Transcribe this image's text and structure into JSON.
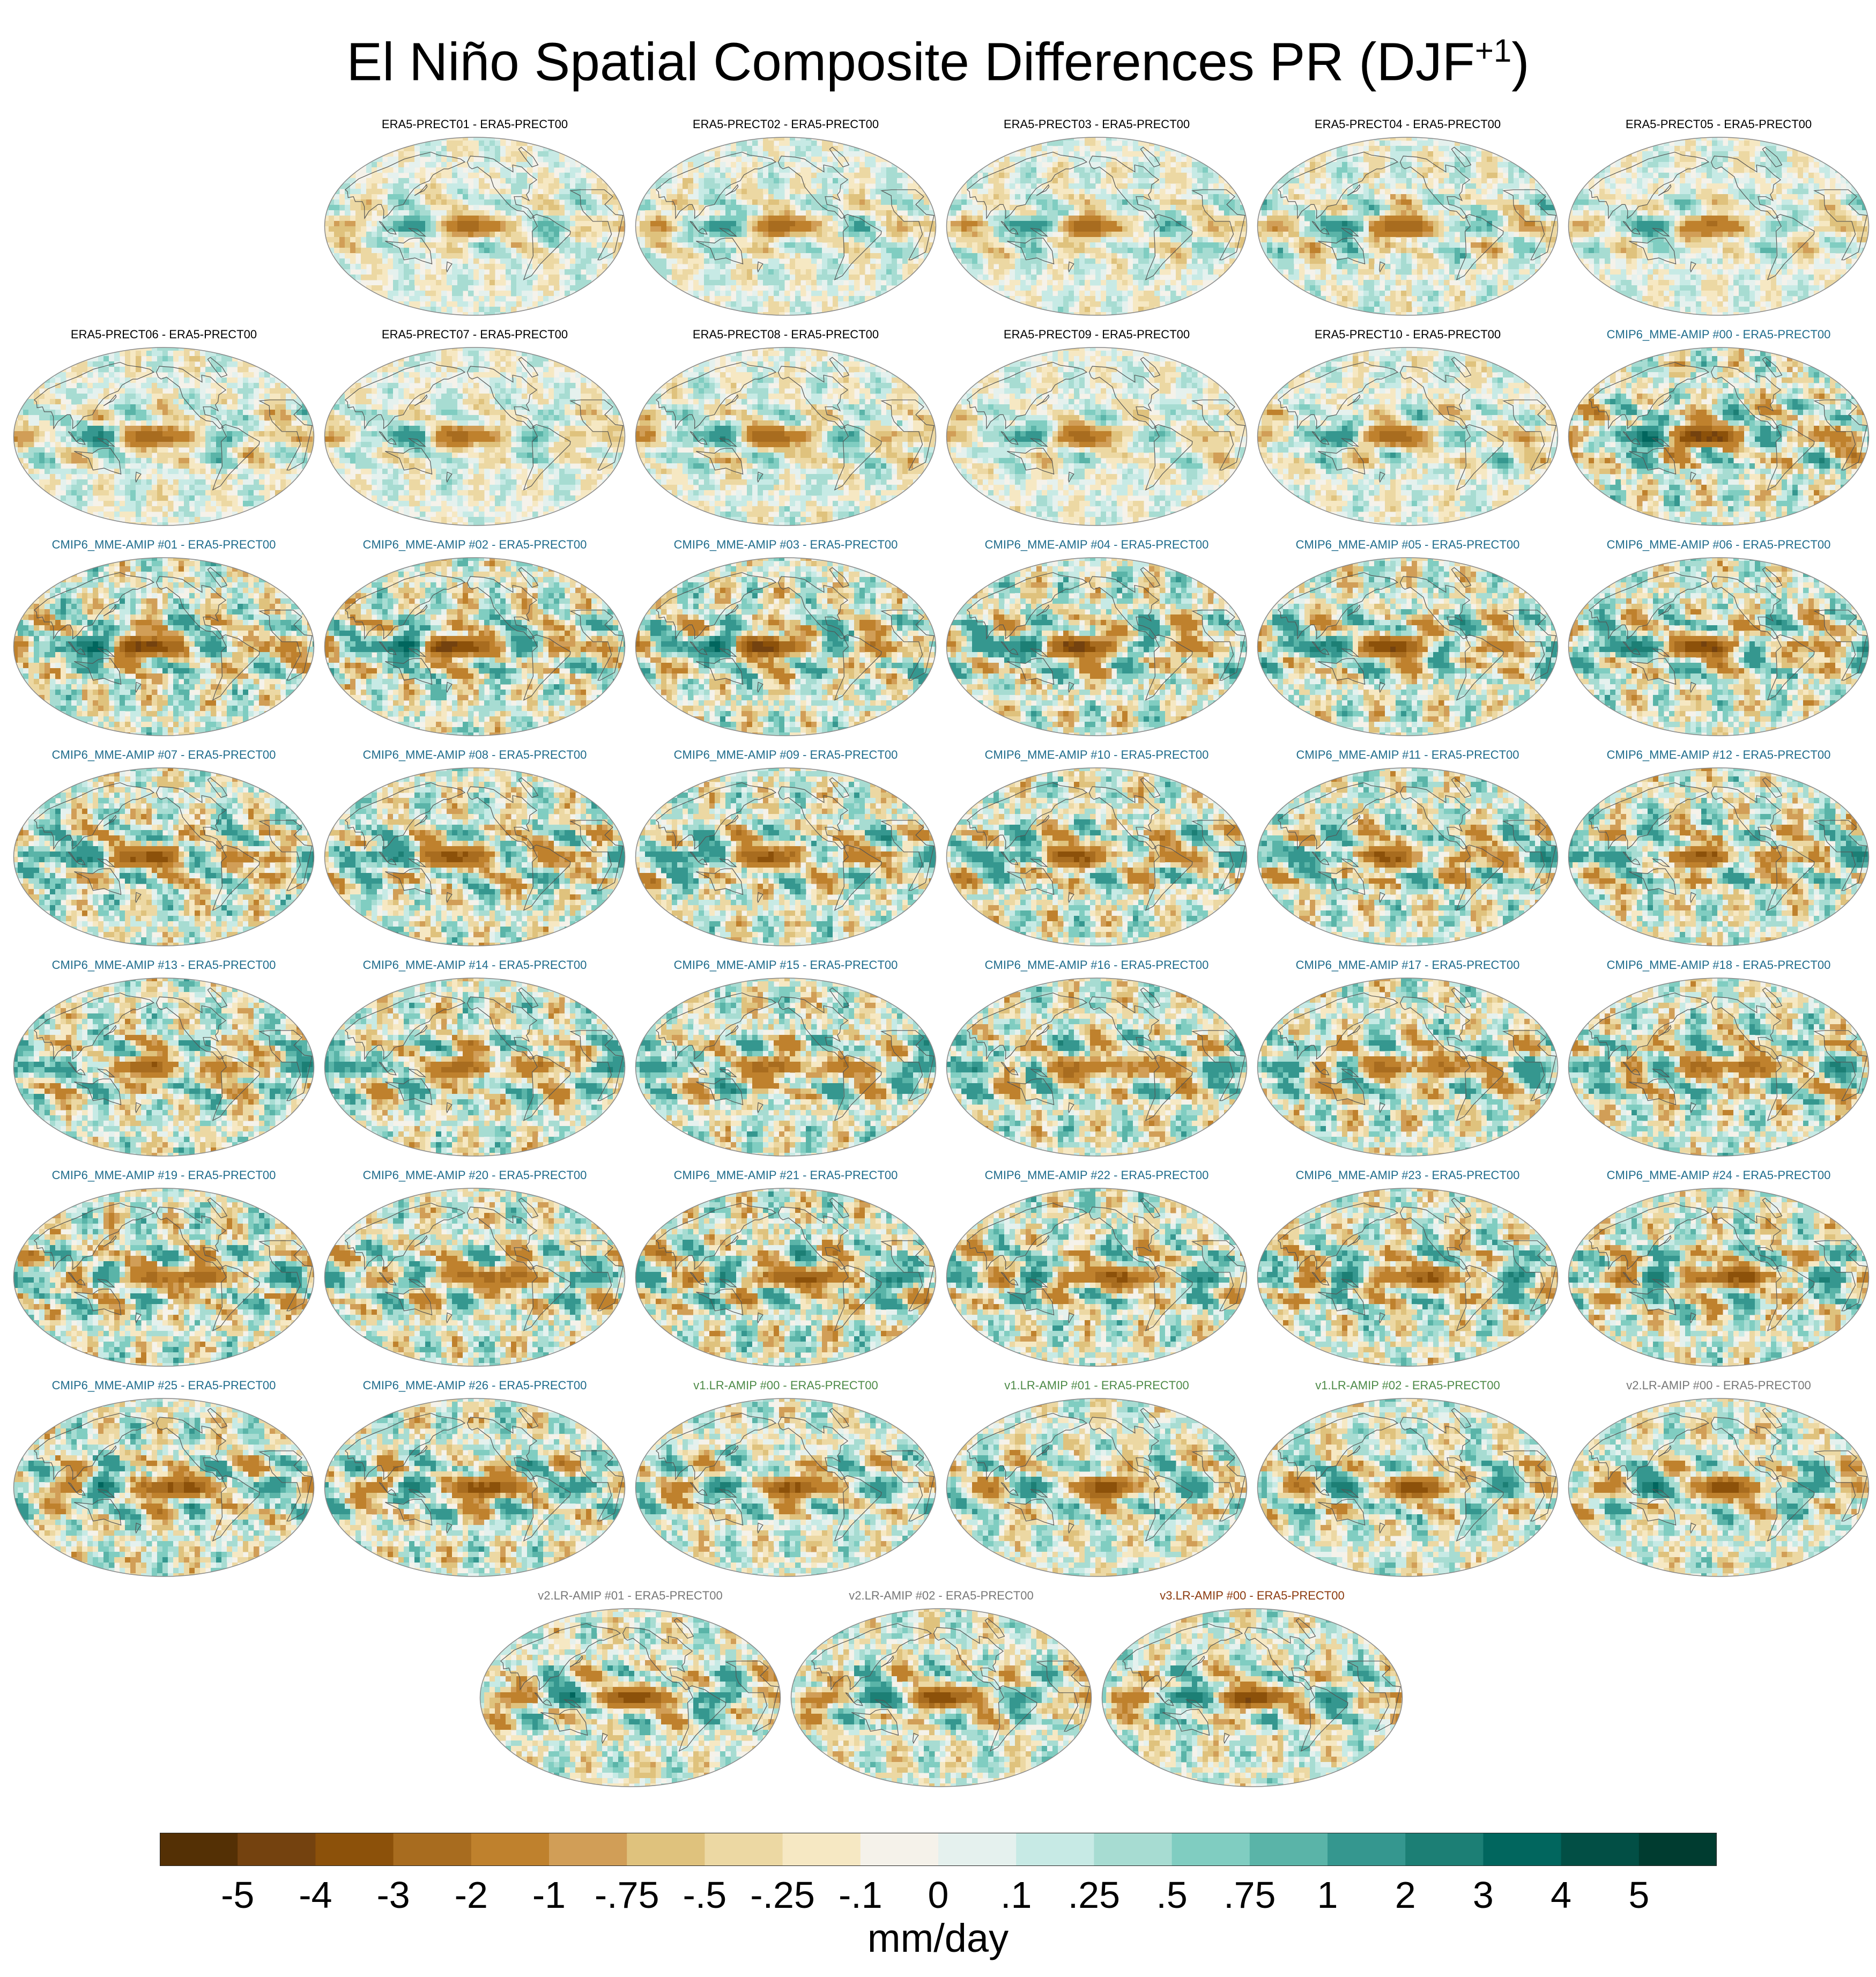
{
  "title": {
    "main": "El Niño Spatial Composite Differences PR (DJF",
    "sup": "+1",
    "close": ")"
  },
  "label_colors": {
    "ERA5": "#000000",
    "CMIP6": "#1f6c8c",
    "v1": "#4d8a47",
    "v2": "#777777",
    "v3": "#8b3a0e"
  },
  "panels": [
    {
      "label": "ERA5-PRECT01 - ERA5-PRECT00",
      "group": "ERA5",
      "amp": 0.45
    },
    {
      "label": "ERA5-PRECT02 - ERA5-PRECT00",
      "group": "ERA5",
      "amp": 0.5
    },
    {
      "label": "ERA5-PRECT03 - ERA5-PRECT00",
      "group": "ERA5",
      "amp": 0.5
    },
    {
      "label": "ERA5-PRECT04 - ERA5-PRECT00",
      "group": "ERA5",
      "amp": 0.6
    },
    {
      "label": "ERA5-PRECT05 - ERA5-PRECT00",
      "group": "ERA5",
      "amp": 0.45
    },
    {
      "label": "ERA5-PRECT06 - ERA5-PRECT00",
      "group": "ERA5",
      "amp": 0.55
    },
    {
      "label": "ERA5-PRECT07 - ERA5-PRECT00",
      "group": "ERA5",
      "amp": 0.45
    },
    {
      "label": "ERA5-PRECT08 - ERA5-PRECT00",
      "group": "ERA5",
      "amp": 0.55
    },
    {
      "label": "ERA5-PRECT09 - ERA5-PRECT00",
      "group": "ERA5",
      "amp": 0.45
    },
    {
      "label": "ERA5-PRECT10 - ERA5-PRECT00",
      "group": "ERA5",
      "amp": 0.55
    },
    {
      "label": "CMIP6_MME-AMIP  #00 - ERA5-PRECT00",
      "group": "CMIP6",
      "amp": 1.0
    },
    {
      "label": "CMIP6_MME-AMIP  #01 - ERA5-PRECT00",
      "group": "CMIP6",
      "amp": 1.0
    },
    {
      "label": "CMIP6_MME-AMIP  #02 - ERA5-PRECT00",
      "group": "CMIP6",
      "amp": 1.0
    },
    {
      "label": "CMIP6_MME-AMIP  #03 - ERA5-PRECT00",
      "group": "CMIP6",
      "amp": 1.0
    },
    {
      "label": "CMIP6_MME-AMIP  #04 - ERA5-PRECT00",
      "group": "CMIP6",
      "amp": 1.0
    },
    {
      "label": "CMIP6_MME-AMIP  #05 - ERA5-PRECT00",
      "group": "CMIP6",
      "amp": 1.0
    },
    {
      "label": "CMIP6_MME-AMIP  #06 - ERA5-PRECT00",
      "group": "CMIP6",
      "amp": 1.0
    },
    {
      "label": "CMIP6_MME-AMIP  #07 - ERA5-PRECT00",
      "group": "CMIP6",
      "amp": 1.0
    },
    {
      "label": "CMIP6_MME-AMIP  #08 - ERA5-PRECT00",
      "group": "CMIP6",
      "amp": 1.0
    },
    {
      "label": "CMIP6_MME-AMIP  #09 - ERA5-PRECT00",
      "group": "CMIP6",
      "amp": 1.0
    },
    {
      "label": "CMIP6_MME-AMIP  #10 - ERA5-PRECT00",
      "group": "CMIP6",
      "amp": 1.0
    },
    {
      "label": "CMIP6_MME-AMIP  #11 - ERA5-PRECT00",
      "group": "CMIP6",
      "amp": 1.0
    },
    {
      "label": "CMIP6_MME-AMIP  #12 - ERA5-PRECT00",
      "group": "CMIP6",
      "amp": 1.0
    },
    {
      "label": "CMIP6_MME-AMIP  #13 - ERA5-PRECT00",
      "group": "CMIP6",
      "amp": 1.0
    },
    {
      "label": "CMIP6_MME-AMIP  #14 - ERA5-PRECT00",
      "group": "CMIP6",
      "amp": 1.0
    },
    {
      "label": "CMIP6_MME-AMIP  #15 - ERA5-PRECT00",
      "group": "CMIP6",
      "amp": 1.0
    },
    {
      "label": "CMIP6_MME-AMIP  #16 - ERA5-PRECT00",
      "group": "CMIP6",
      "amp": 1.0
    },
    {
      "label": "CMIP6_MME-AMIP  #17 - ERA5-PRECT00",
      "group": "CMIP6",
      "amp": 1.0
    },
    {
      "label": "CMIP6_MME-AMIP  #18 - ERA5-PRECT00",
      "group": "CMIP6",
      "amp": 1.0
    },
    {
      "label": "CMIP6_MME-AMIP  #19 - ERA5-PRECT00",
      "group": "CMIP6",
      "amp": 1.1
    },
    {
      "label": "CMIP6_MME-AMIP  #20 - ERA5-PRECT00",
      "group": "CMIP6",
      "amp": 1.0
    },
    {
      "label": "CMIP6_MME-AMIP  #21 - ERA5-PRECT00",
      "group": "CMIP6",
      "amp": 1.1
    },
    {
      "label": "CMIP6_MME-AMIP  #22 - ERA5-PRECT00",
      "group": "CMIP6",
      "amp": 1.0
    },
    {
      "label": "CMIP6_MME-AMIP  #23 - ERA5-PRECT00",
      "group": "CMIP6",
      "amp": 1.0
    },
    {
      "label": "CMIP6_MME-AMIP  #24 - ERA5-PRECT00",
      "group": "CMIP6",
      "amp": 1.0
    },
    {
      "label": "CMIP6_MME-AMIP  #25 - ERA5-PRECT00",
      "group": "CMIP6",
      "amp": 1.0
    },
    {
      "label": "CMIP6_MME-AMIP  #26 - ERA5-PRECT00",
      "group": "CMIP6",
      "amp": 1.0
    },
    {
      "label": "v1.LR-AMIP  #00 - ERA5-PRECT00",
      "group": "v1",
      "amp": 0.85
    },
    {
      "label": "v1.LR-AMIP  #01 - ERA5-PRECT00",
      "group": "v1",
      "amp": 0.85
    },
    {
      "label": "v1.LR-AMIP  #02 - ERA5-PRECT00",
      "group": "v1",
      "amp": 0.85
    },
    {
      "label": "v2.LR-AMIP  #00 - ERA5-PRECT00",
      "group": "v2",
      "amp": 0.85
    },
    {
      "label": "v2.LR-AMIP  #01 - ERA5-PRECT00",
      "group": "v2",
      "amp": 0.85
    },
    {
      "label": "v2.LR-AMIP  #02 - ERA5-PRECT00",
      "group": "v2",
      "amp": 0.85
    },
    {
      "label": "v3.LR-AMIP  #00 - ERA5-PRECT00",
      "group": "v3",
      "amp": 0.85
    }
  ],
  "chart_data": {
    "type": "heatmap",
    "title": "El Niño Spatial Composite Differences PR (DJF+1)",
    "projection": "Robinson (Pacific-centered, global)",
    "variable": "PR",
    "season": "DJF+1",
    "colorbar": {
      "unit": "mm/day",
      "tick_labels": [
        "-5",
        "-4",
        "-3",
        "-2",
        "-1",
        "-.75",
        "-.5",
        "-.25",
        "-.1",
        "0",
        ".1",
        ".25",
        ".5",
        ".75",
        "1",
        "2",
        "3",
        "4",
        "5"
      ],
      "colors": [
        "#543005",
        "#74420f",
        "#8c510a",
        "#a86c1f",
        "#bf812d",
        "#d19e57",
        "#dfc27d",
        "#ecd8a3",
        "#f6e8c3",
        "#f5f2ea",
        "#e5f1ee",
        "#c7eae5",
        "#a7dcd2",
        "#80cdc1",
        "#5ab4a8",
        "#35978f",
        "#1c7f75",
        "#01665e",
        "#024f45",
        "#003c30"
      ]
    }
  }
}
